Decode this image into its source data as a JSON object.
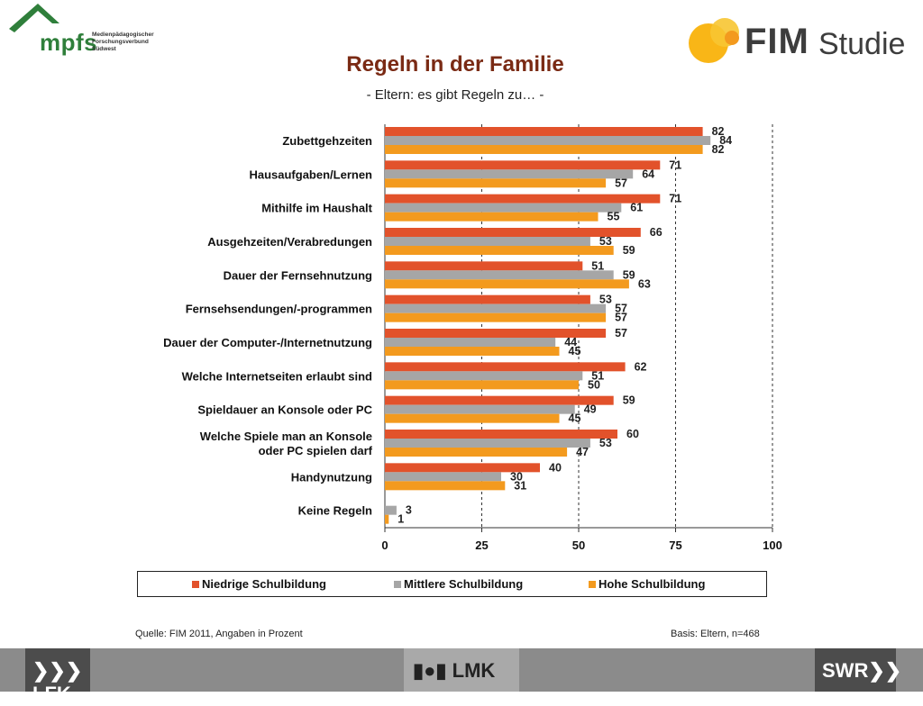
{
  "header": {
    "mpfs_logo": "mpfs",
    "mpfs_sub": [
      "Medienpädagogischer",
      "Forschungsverbund",
      "Südwest"
    ],
    "fim_logo": "FIM",
    "fim_studie": "Studie"
  },
  "colors": {
    "niedrig": "#e2522b",
    "mittel": "#a6a6a6",
    "hoch": "#f39a1e",
    "title": "#7a2a14"
  },
  "chart_data": {
    "type": "bar",
    "orientation": "horizontal",
    "title": "Regeln in der Familie",
    "subtitle": "- Eltern: es gibt Regeln zu… -",
    "categories": [
      "Zubettgehzeiten",
      "Hausaufgaben/Lernen",
      "Mithilfe im Haushalt",
      "Ausgehzeiten/Verabredungen",
      "Dauer der Fernsehnutzung",
      "Fernsehsendungen/-programmen",
      "Dauer der Computer-/Internetnutzung",
      "Welche Internetseiten  erlaubt sind",
      "Spieldauer an Konsole oder PC",
      "Welche Spiele man an Konsole\noder PC spielen darf",
      "Handynutzung",
      "Keine Regeln"
    ],
    "series": [
      {
        "name": "Niedrige Schulbildung",
        "color": "#e2522b",
        "values": [
          82,
          71,
          71,
          66,
          51,
          53,
          57,
          62,
          59,
          60,
          40,
          0
        ]
      },
      {
        "name": "Mittlere Schulbildung",
        "color": "#a6a6a6",
        "values": [
          84,
          64,
          61,
          53,
          59,
          57,
          44,
          51,
          49,
          53,
          30,
          3
        ]
      },
      {
        "name": "Hohe Schulbildung",
        "color": "#f39a1e",
        "values": [
          82,
          57,
          55,
          59,
          63,
          57,
          45,
          50,
          45,
          47,
          31,
          1
        ]
      }
    ],
    "xlim": [
      0,
      100
    ],
    "xticks": [
      "0",
      "25",
      "50",
      "75",
      "100"
    ],
    "grid": "vertical dashed",
    "legend_position": "bottom"
  },
  "footer": {
    "source": "Quelle: FIM 2011, Angaben in Prozent",
    "basis": "Basis: Eltern, n=468",
    "logo_lfk": "LFK",
    "logo_lmk": "LMK",
    "logo_swr": "SWR"
  }
}
